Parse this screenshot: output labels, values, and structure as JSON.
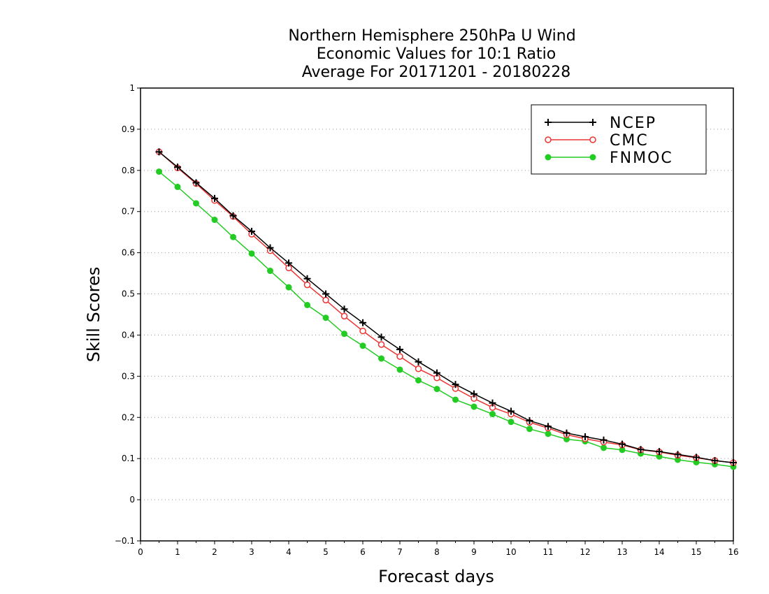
{
  "chart_data": {
    "type": "line",
    "title": [
      "Northern Hemisphere 250hPa U Wind",
      "Economic Values for 10:1 Ratio",
      "Average For 20171201 - 20180228"
    ],
    "xlabel": "Forecast days",
    "ylabel": "Skill Scores",
    "xlim": [
      0,
      16
    ],
    "ylim": [
      -0.1,
      1
    ],
    "xticks": [
      "0",
      "1",
      "2",
      "3",
      "4",
      "5",
      "6",
      "7",
      "8",
      "9",
      "10",
      "11",
      "12",
      "13",
      "14",
      "15",
      "16"
    ],
    "yticks": [
      "−0.1",
      "0",
      "0.1",
      "0.2",
      "0.3",
      "0.4",
      "0.5",
      "0.6",
      "0.7",
      "0.8",
      "0.9",
      "1"
    ],
    "grid": "horizontal dotted",
    "legend_position": "top-right",
    "x": [
      0.5,
      1,
      1.5,
      2,
      2.5,
      3,
      3.5,
      4,
      4.5,
      5,
      5.5,
      6,
      6.5,
      7,
      7.5,
      8,
      8.5,
      9,
      9.5,
      10,
      10.5,
      11,
      11.5,
      12,
      12.5,
      13,
      13.5,
      14,
      14.5,
      15,
      15.5,
      16
    ],
    "series": [
      {
        "name": "NCEP",
        "color": "#000000",
        "marker": "plus",
        "values": [
          0.845,
          0.808,
          0.77,
          0.732,
          0.69,
          0.652,
          0.612,
          0.575,
          0.537,
          0.5,
          0.463,
          0.43,
          0.395,
          0.365,
          0.335,
          0.308,
          0.28,
          0.257,
          0.235,
          0.215,
          0.192,
          0.178,
          0.162,
          0.153,
          0.145,
          0.135,
          0.122,
          0.117,
          0.11,
          0.103,
          0.095,
          0.09
        ]
      },
      {
        "name": "CMC",
        "color": "#ee3333",
        "marker": "open-circle",
        "values": [
          0.845,
          0.806,
          0.768,
          0.727,
          0.688,
          0.645,
          0.605,
          0.563,
          0.522,
          0.485,
          0.446,
          0.41,
          0.377,
          0.348,
          0.318,
          0.296,
          0.27,
          0.246,
          0.224,
          0.208,
          0.188,
          0.174,
          0.158,
          0.148,
          0.14,
          0.133,
          0.121,
          0.116,
          0.108,
          0.102,
          0.095,
          0.09
        ]
      },
      {
        "name": "FNMOC",
        "color": "#22cc22",
        "marker": "filled-circle",
        "values": [
          0.797,
          0.76,
          0.72,
          0.68,
          0.638,
          0.598,
          0.556,
          0.516,
          0.473,
          0.442,
          0.403,
          0.374,
          0.343,
          0.316,
          0.29,
          0.269,
          0.243,
          0.226,
          0.208,
          0.189,
          0.172,
          0.16,
          0.147,
          0.142,
          0.126,
          0.121,
          0.112,
          0.105,
          0.097,
          0.091,
          0.086,
          0.08
        ]
      }
    ]
  }
}
